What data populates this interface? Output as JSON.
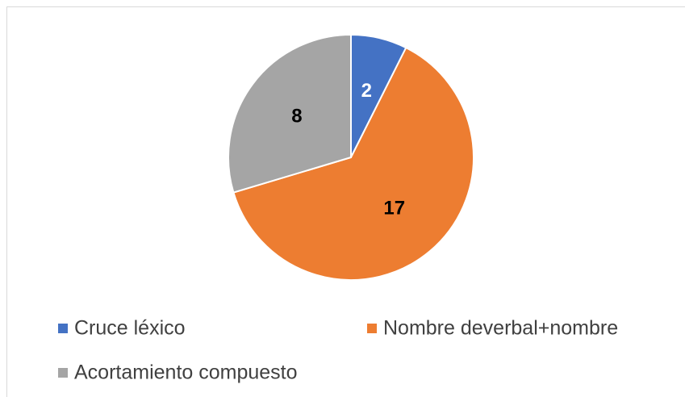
{
  "chart_data": {
    "type": "pie",
    "categories": [
      "Cruce léxico",
      "Nombre deverbal+nombre",
      "Acortamiento compuesto"
    ],
    "values": [
      2,
      17,
      8
    ],
    "colors": [
      "#4472c4",
      "#ed7d31",
      "#a5a5a5"
    ],
    "label_colors": [
      "#ffffff",
      "#000000",
      "#000000"
    ],
    "legend": "bottom"
  }
}
